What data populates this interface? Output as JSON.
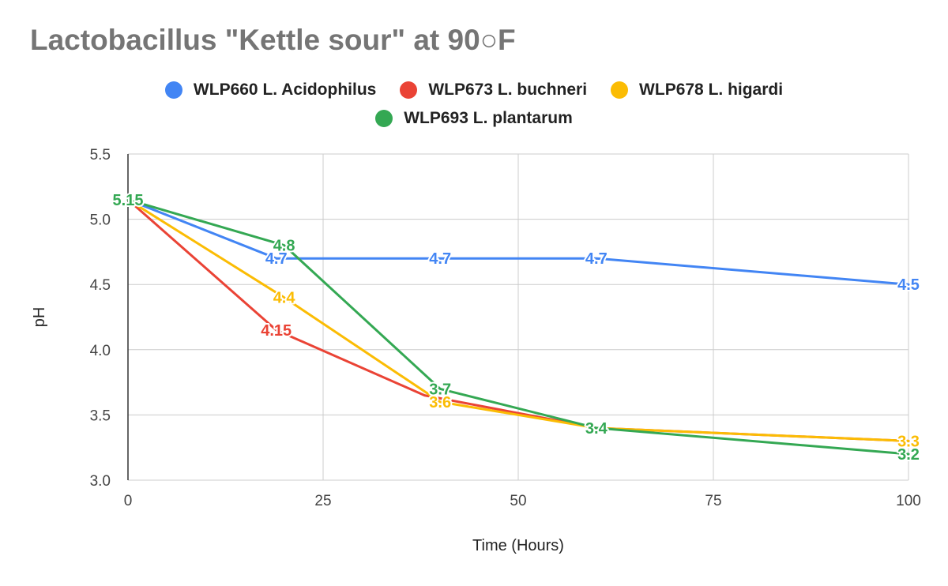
{
  "chart_data": {
    "type": "line",
    "title": "Lactobacillus \"Kettle sour\" at 90○F",
    "xlabel": "Time (Hours)",
    "ylabel": "pH",
    "xlim": [
      0,
      100
    ],
    "ylim": [
      3.0,
      5.5
    ],
    "xticks": [
      0,
      25,
      50,
      75,
      100
    ],
    "xtick_labels": [
      "0",
      "25",
      "50",
      "75",
      "100"
    ],
    "yticks": [
      3.0,
      3.5,
      4.0,
      4.5,
      5.0,
      5.5
    ],
    "ytick_labels": [
      "3.0",
      "3.5",
      "4.0",
      "4.5",
      "5.0",
      "5.5"
    ],
    "grid": true,
    "legend_position": "top-center",
    "series": [
      {
        "name": "WLP660 L. Acidophilus",
        "color": "#4285F4",
        "points": [
          {
            "x": 0,
            "y": 5.15,
            "label": "5.15",
            "show_label": false
          },
          {
            "x": 19,
            "y": 4.7,
            "label": "4.7",
            "show_label": true
          },
          {
            "x": 40,
            "y": 4.7,
            "label": "4.7",
            "show_label": true
          },
          {
            "x": 60,
            "y": 4.7,
            "label": "4.7",
            "show_label": true
          },
          {
            "x": 100,
            "y": 4.5,
            "label": "4.5",
            "show_label": true
          }
        ]
      },
      {
        "name": "WLP673 L. buchneri",
        "color": "#EA4335",
        "points": [
          {
            "x": 0,
            "y": 5.15,
            "label": "5.15",
            "show_label": false
          },
          {
            "x": 19,
            "y": 4.15,
            "label": "4.15",
            "show_label": true
          },
          {
            "x": 38,
            "y": 3.65,
            "label": "3.65",
            "show_label": false
          },
          {
            "x": 60,
            "y": 3.4,
            "label": "3.4",
            "show_label": false
          },
          {
            "x": 100,
            "y": 3.3,
            "label": "3.3",
            "show_label": false
          }
        ]
      },
      {
        "name": "WLP678 L. higardi",
        "color": "#FBBC04",
        "points": [
          {
            "x": 0,
            "y": 5.15,
            "label": "5.15",
            "show_label": false
          },
          {
            "x": 20,
            "y": 4.4,
            "label": "4.4",
            "show_label": true
          },
          {
            "x": 40,
            "y": 3.6,
            "label": "3.6",
            "show_label": true
          },
          {
            "x": 60,
            "y": 3.4,
            "label": "3.4",
            "show_label": false
          },
          {
            "x": 100,
            "y": 3.3,
            "label": "3.3",
            "show_label": true
          }
        ]
      },
      {
        "name": "WLP693 L. plantarum",
        "color": "#34A853",
        "points": [
          {
            "x": 0,
            "y": 5.15,
            "label": "5.15",
            "show_label": true
          },
          {
            "x": 20,
            "y": 4.8,
            "label": "4.8",
            "show_label": true
          },
          {
            "x": 40,
            "y": 3.7,
            "label": "3.7",
            "show_label": true
          },
          {
            "x": 60,
            "y": 3.4,
            "label": "3.4",
            "show_label": true
          },
          {
            "x": 100,
            "y": 3.2,
            "label": "3.2",
            "show_label": true
          }
        ]
      }
    ]
  }
}
